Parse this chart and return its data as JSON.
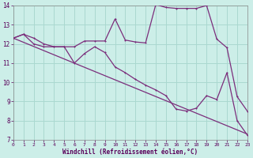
{
  "xlabel": "Windchill (Refroidissement éolien,°C)",
  "background_color": "#cceee8",
  "grid_color": "#aad8d0",
  "line_color": "#7b2d7b",
  "x_min": 0,
  "x_max": 23,
  "y_min": 7,
  "y_max": 14,
  "trend_x": [
    0,
    23
  ],
  "trend_y": [
    12.3,
    7.3
  ],
  "series2_x": [
    0,
    1,
    2,
    3,
    4,
    5,
    6,
    7,
    8,
    9,
    10,
    11,
    12,
    13,
    14,
    15,
    16,
    17,
    18,
    19,
    20,
    21,
    22,
    23
  ],
  "series2_y": [
    12.3,
    12.5,
    12.3,
    12.0,
    11.85,
    11.85,
    11.85,
    12.15,
    12.15,
    12.15,
    13.3,
    12.2,
    12.1,
    12.05,
    14.05,
    13.9,
    13.85,
    13.85,
    13.85,
    14.0,
    12.25,
    11.8,
    9.25,
    8.5
  ],
  "series3_x": [
    0,
    1,
    2,
    3,
    4,
    5,
    6,
    7,
    8,
    9,
    10,
    11,
    12,
    13,
    14,
    15,
    16,
    17,
    18,
    19,
    20,
    21,
    22,
    23
  ],
  "series3_y": [
    12.3,
    12.5,
    12.0,
    11.85,
    11.85,
    11.85,
    11.0,
    11.5,
    11.85,
    11.55,
    10.8,
    10.5,
    10.15,
    9.85,
    9.6,
    9.3,
    8.6,
    8.5,
    8.65,
    9.3,
    9.1,
    10.5,
    8.0,
    7.25
  ],
  "yticks": [
    7,
    8,
    9,
    10,
    11,
    12,
    13,
    14
  ],
  "xticks": [
    0,
    1,
    2,
    3,
    4,
    5,
    6,
    7,
    8,
    9,
    10,
    11,
    12,
    13,
    14,
    15,
    16,
    17,
    18,
    19,
    20,
    21,
    22,
    23
  ]
}
